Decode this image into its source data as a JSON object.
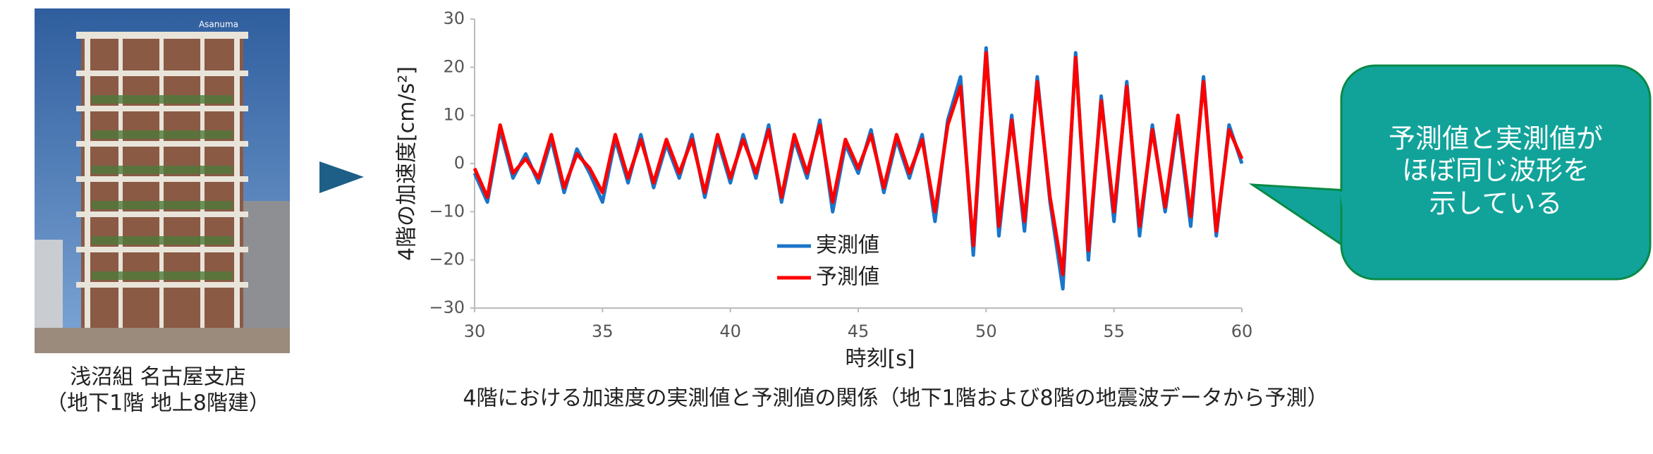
{
  "photo_logo": "Asanuma",
  "photo_caption": [
    "浅沼組 名古屋支店",
    "（地下1階 地上8階建）"
  ],
  "callout": [
    "予測値と実測値が",
    "ほぼ同じ波形を",
    "示している"
  ],
  "chart_data": {
    "type": "line",
    "caption": "4階における加速度の実測値と予測値の関係（地下1階および8階の地震波データから予測）",
    "x_label": "時刻[s]",
    "y_label": "4階の加速度[cm/s²]",
    "x": [
      30,
      30.5,
      31,
      31.5,
      32,
      32.5,
      33,
      33.5,
      34,
      34.5,
      35,
      35.5,
      36,
      36.5,
      37,
      37.5,
      38,
      38.5,
      39,
      39.5,
      40,
      40.5,
      41,
      41.5,
      42,
      42.5,
      43,
      43.5,
      44,
      44.5,
      45,
      45.5,
      46,
      46.5,
      47,
      47.5,
      48,
      48.5,
      49,
      49.5,
      50,
      50.5,
      51,
      51.5,
      52,
      52.5,
      53,
      53.5,
      54,
      54.5,
      55,
      55.5,
      56,
      56.5,
      57,
      57.5,
      58,
      58.5,
      59,
      59.5,
      60
    ],
    "series": [
      {
        "name": "実測値",
        "color": "#1a75c8",
        "values": [
          -2,
          -8,
          7,
          -3,
          2,
          -4,
          5,
          -6,
          3,
          -2,
          -8,
          5,
          -4,
          6,
          -5,
          4,
          -3,
          6,
          -7,
          5,
          -4,
          6,
          -3,
          8,
          -8,
          5,
          -3,
          9,
          -10,
          4,
          -2,
          7,
          -6,
          5,
          -3,
          6,
          -12,
          9,
          18,
          -19,
          24,
          -15,
          10,
          -14,
          18,
          -8,
          -26,
          23,
          -20,
          14,
          -12,
          17,
          -15,
          8,
          -10,
          9,
          -13,
          18,
          -15,
          8,
          0
        ]
      },
      {
        "name": "予測値",
        "color": "#ff0000",
        "values": [
          -1,
          -7,
          8,
          -2,
          1,
          -3,
          6,
          -5,
          2,
          -1,
          -6,
          6,
          -3,
          5,
          -4,
          5,
          -2,
          5,
          -6,
          6,
          -3,
          5,
          -2,
          7,
          -7,
          6,
          -2,
          8,
          -8,
          5,
          -1,
          6,
          -5,
          6,
          -2,
          5,
          -10,
          8,
          16,
          -17,
          23,
          -13,
          9,
          -12,
          17,
          -7,
          -23,
          22,
          -18,
          13,
          -10,
          16,
          -13,
          7,
          -9,
          10,
          -11,
          17,
          -14,
          7,
          1
        ]
      }
    ],
    "xlim": [
      30,
      60
    ],
    "xticks": [
      30,
      35,
      40,
      45,
      50,
      55,
      60
    ],
    "ylim": [
      -30,
      30
    ],
    "yticks": [
      {
        "value": -30,
        "label": "−30"
      },
      {
        "value": -20,
        "label": "−20"
      },
      {
        "value": -10,
        "label": "−10"
      },
      0,
      10,
      20,
      30
    ],
    "grid": false
  }
}
